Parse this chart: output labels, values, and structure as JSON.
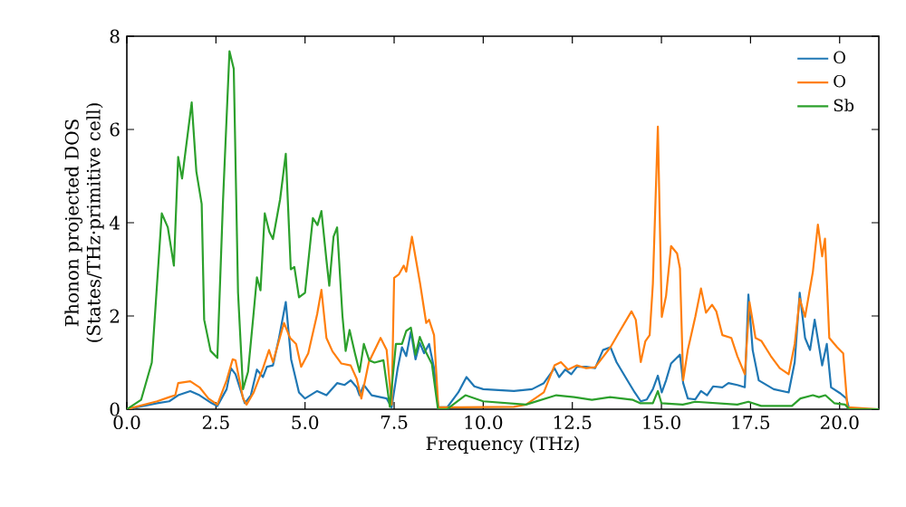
{
  "chart_data": {
    "type": "line",
    "xlabel": "Frequency (THz)",
    "ylabel": "Phonon projected DOS\n(States/THz·primitive cell)",
    "xlim": [
      0,
      21.1
    ],
    "ylim": [
      0,
      8
    ],
    "xticks": [
      {
        "value": 0,
        "label": "0.0"
      },
      {
        "value": 2.5,
        "label": "2.5"
      },
      {
        "value": 5,
        "label": "5.0"
      },
      {
        "value": 7.5,
        "label": "7.5"
      },
      {
        "value": 10,
        "label": "10.0"
      },
      {
        "value": 12.5,
        "label": "12.5"
      },
      {
        "value": 15,
        "label": "15.0"
      },
      {
        "value": 17.5,
        "label": "17.5"
      },
      {
        "value": 20,
        "label": "20.0"
      }
    ],
    "yticks": [
      0,
      2,
      4,
      6,
      8
    ],
    "legend": "top right",
    "series": [
      {
        "name": "O",
        "color": "#1f77b4",
        "x": [
          0,
          0.85,
          1.19,
          1.44,
          1.78,
          2.04,
          2.38,
          2.54,
          2.8,
          2.92,
          3.05,
          3.31,
          3.48,
          3.65,
          3.82,
          3.93,
          4.1,
          4.27,
          4.46,
          4.61,
          4.83,
          5.0,
          5.34,
          5.6,
          5.9,
          6.11,
          6.28,
          6.45,
          6.53,
          6.65,
          6.87,
          7.29,
          7.43,
          7.6,
          7.72,
          7.84,
          7.97,
          8.1,
          8.22,
          8.34,
          8.48,
          8.62,
          8.74,
          8.99,
          9.3,
          9.53,
          9.75,
          10.0,
          10.86,
          11.37,
          11.7,
          12.0,
          12.13,
          12.3,
          12.47,
          12.63,
          12.89,
          13.14,
          13.36,
          13.57,
          13.74,
          13.99,
          14.25,
          14.42,
          14.59,
          14.76,
          14.9,
          15.01,
          15.13,
          15.27,
          15.52,
          15.61,
          15.74,
          15.95,
          16.11,
          16.28,
          16.45,
          16.71,
          16.88,
          17.13,
          17.34,
          17.44,
          17.56,
          17.73,
          18.15,
          18.57,
          18.74,
          18.88,
          19.03,
          19.17,
          19.3,
          19.51,
          19.64,
          19.76,
          20.02,
          20.19,
          20.27,
          21.1
        ],
        "values": [
          0,
          0.13,
          0.17,
          0.3,
          0.39,
          0.3,
          0.13,
          0.07,
          0.43,
          0.88,
          0.75,
          0.13,
          0.3,
          0.85,
          0.69,
          0.91,
          0.94,
          1.53,
          2.3,
          1.07,
          0.36,
          0.23,
          0.39,
          0.3,
          0.56,
          0.52,
          0.62,
          0.47,
          0.3,
          0.52,
          0.3,
          0.23,
          0.04,
          0.88,
          1.33,
          1.14,
          1.66,
          1.07,
          1.42,
          1.2,
          1.4,
          0.88,
          0.04,
          0.04,
          0.36,
          0.69,
          0.49,
          0.43,
          0.39,
          0.43,
          0.56,
          0.88,
          0.69,
          0.85,
          0.75,
          0.91,
          0.91,
          0.88,
          1.27,
          1.33,
          1.01,
          0.69,
          0.36,
          0.17,
          0.21,
          0.43,
          0.72,
          0.36,
          0.62,
          0.98,
          1.17,
          0.56,
          0.23,
          0.21,
          0.39,
          0.3,
          0.49,
          0.47,
          0.56,
          0.52,
          0.47,
          2.46,
          1.27,
          0.62,
          0.43,
          0.36,
          1.01,
          2.5,
          1.53,
          1.27,
          1.92,
          0.94,
          1.4,
          0.47,
          0.34,
          0.23,
          0,
          0
        ]
      },
      {
        "name": "O",
        "color": "#ff7f0e",
        "x": [
          0,
          0.85,
          1.19,
          1.36,
          1.44,
          1.78,
          2.04,
          2.29,
          2.54,
          2.8,
          2.97,
          3.05,
          3.26,
          3.36,
          3.56,
          3.82,
          3.99,
          4.1,
          4.41,
          4.58,
          4.75,
          4.89,
          5.09,
          5.34,
          5.46,
          5.6,
          5.77,
          6.02,
          6.28,
          6.45,
          6.58,
          6.79,
          7.12,
          7.29,
          7.43,
          7.5,
          7.63,
          7.77,
          7.84,
          8.0,
          8.23,
          8.4,
          8.48,
          8.62,
          8.74,
          10.86,
          11.2,
          11.7,
          12.0,
          12.18,
          12.38,
          12.63,
          12.89,
          13.14,
          13.57,
          13.82,
          14.16,
          14.28,
          14.42,
          14.55,
          14.67,
          14.76,
          14.9,
          15.01,
          15.13,
          15.27,
          15.44,
          15.52,
          15.61,
          15.74,
          15.95,
          16.11,
          16.25,
          16.42,
          16.54,
          16.71,
          16.96,
          17.13,
          17.34,
          17.47,
          17.64,
          17.81,
          18.07,
          18.32,
          18.57,
          18.74,
          18.88,
          19.03,
          19.25,
          19.39,
          19.51,
          19.59,
          19.71,
          19.93,
          20.1,
          20.22,
          21.1
        ],
        "values": [
          0,
          0.17,
          0.26,
          0.3,
          0.56,
          0.6,
          0.47,
          0.23,
          0.1,
          0.62,
          1.07,
          1.05,
          0.23,
          0.1,
          0.36,
          0.88,
          1.27,
          1.01,
          1.85,
          1.53,
          1.4,
          0.91,
          1.2,
          2.04,
          2.56,
          1.53,
          1.24,
          0.98,
          0.94,
          0.65,
          0.23,
          1.01,
          1.53,
          1.27,
          0.1,
          2.82,
          2.89,
          3.08,
          2.95,
          3.7,
          2.69,
          1.85,
          1.92,
          1.59,
          0.04,
          0.05,
          0.1,
          0.36,
          0.94,
          1.01,
          0.85,
          0.94,
          0.88,
          0.9,
          1.33,
          1.66,
          2.1,
          1.92,
          1.01,
          1.46,
          1.59,
          2.69,
          6.06,
          1.98,
          2.43,
          3.5,
          3.34,
          3.02,
          0.62,
          1.27,
          1.98,
          2.59,
          2.07,
          2.24,
          2.1,
          1.59,
          1.53,
          1.14,
          0.75,
          2.3,
          1.53,
          1.46,
          1.14,
          0.88,
          0.75,
          1.4,
          2.37,
          1.98,
          2.95,
          3.96,
          3.28,
          3.66,
          1.53,
          1.33,
          1.2,
          0.04,
          0
        ]
      },
      {
        "name": "Sb",
        "color": "#2ca02c",
        "x": [
          0,
          0.4,
          0.7,
          0.98,
          1.15,
          1.32,
          1.44,
          1.55,
          1.82,
          1.95,
          2.1,
          2.17,
          2.35,
          2.54,
          2.7,
          2.88,
          3.0,
          3.12,
          3.26,
          3.4,
          3.55,
          3.65,
          3.75,
          3.87,
          4.0,
          4.1,
          4.3,
          4.46,
          4.6,
          4.7,
          4.83,
          5.0,
          5.22,
          5.35,
          5.46,
          5.6,
          5.68,
          5.8,
          5.9,
          6.05,
          6.14,
          6.25,
          6.4,
          6.53,
          6.65,
          6.8,
          6.95,
          7.2,
          7.38,
          7.55,
          7.72,
          7.84,
          7.97,
          8.1,
          8.22,
          8.39,
          8.56,
          8.73,
          8.98,
          9.5,
          10.0,
          11.2,
          12.05,
          12.55,
          13.05,
          13.56,
          14.2,
          14.4,
          14.76,
          14.9,
          15.0,
          15.6,
          15.95,
          17.13,
          17.44,
          17.8,
          18.66,
          18.9,
          19.25,
          19.42,
          19.6,
          19.85,
          20.15,
          20.27,
          21.1
        ],
        "values": [
          0,
          0.2,
          1.0,
          4.2,
          3.9,
          3.08,
          5.41,
          4.95,
          6.58,
          5.1,
          4.4,
          1.92,
          1.25,
          1.1,
          4.5,
          7.68,
          7.3,
          2.5,
          0.43,
          0.8,
          2.0,
          2.83,
          2.55,
          4.2,
          3.8,
          3.65,
          4.5,
          5.48,
          3.0,
          3.05,
          2.4,
          2.5,
          4.1,
          3.95,
          4.25,
          3.2,
          2.65,
          3.7,
          3.9,
          2.0,
          1.25,
          1.7,
          1.2,
          0.8,
          1.4,
          1.05,
          1.0,
          1.05,
          0.05,
          1.4,
          1.4,
          1.68,
          1.75,
          1.17,
          1.55,
          1.23,
          0.97,
          0,
          0,
          0.3,
          0.17,
          0.1,
          0.3,
          0.26,
          0.2,
          0.26,
          0.2,
          0.13,
          0.13,
          0.39,
          0.13,
          0.1,
          0.16,
          0.1,
          0.16,
          0.07,
          0.07,
          0.23,
          0.3,
          0.26,
          0.3,
          0.13,
          0.1,
          0,
          0
        ]
      }
    ]
  }
}
